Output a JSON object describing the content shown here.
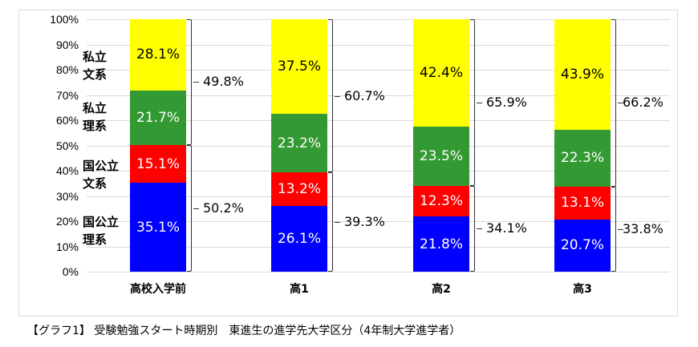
{
  "chart_data": {
    "type": "bar",
    "stacked": true,
    "title": "",
    "caption": "【グラフ1】 受験勉強スタート時期別　東進生の進学先大学区分（4年制大学進学者）",
    "xlabel": "",
    "ylabel": "",
    "ylim": [
      0,
      100
    ],
    "yticks": [
      "0%",
      "10%",
      "20%",
      "30%",
      "40%",
      "50%",
      "60%",
      "70%",
      "80%",
      "90%",
      "100%"
    ],
    "grid": true,
    "legend_position": "inline-left",
    "categories": [
      "高校入学前",
      "高1",
      "高2",
      "高3"
    ],
    "series": [
      {
        "name": "国公立理系",
        "color": "#0000ff",
        "values": [
          35.1,
          26.1,
          21.8,
          20.7
        ]
      },
      {
        "name": "国公立文系",
        "color": "#ff0000",
        "values": [
          15.1,
          13.2,
          12.3,
          13.1
        ]
      },
      {
        "name": "私立理系",
        "color": "#339933",
        "values": [
          21.7,
          23.2,
          23.5,
          22.3
        ]
      },
      {
        "name": "私立文系",
        "color": "#ffff00",
        "values": [
          28.1,
          37.5,
          42.4,
          43.9
        ]
      }
    ],
    "group_totals": {
      "国公立": [
        50.2,
        39.3,
        34.1,
        33.8
      ],
      "私立": [
        49.8,
        60.7,
        65.9,
        66.2
      ]
    },
    "segment_labels": [
      [
        "35.1%",
        "15.1%",
        "21.7%",
        "28.1%"
      ],
      [
        "26.1%",
        "13.2%",
        "23.2%",
        "37.5%"
      ],
      [
        "21.8%",
        "12.3%",
        "23.5%",
        "42.4%"
      ],
      [
        "20.7%",
        "13.1%",
        "22.3%",
        "43.9%"
      ]
    ],
    "total_labels": {
      "national": [
        "50.2%",
        "39.3%",
        "34.1%",
        "33.8%"
      ],
      "private": [
        "49.8%",
        "60.7%",
        "65.9%",
        "66.2%"
      ]
    },
    "inline_legend": [
      {
        "line1": "私立",
        "line2": "文系"
      },
      {
        "line1": "私立",
        "line2": "理系"
      },
      {
        "line1": "国公立",
        "line2": "文系"
      },
      {
        "line1": "国公立",
        "line2": "理系"
      }
    ]
  }
}
